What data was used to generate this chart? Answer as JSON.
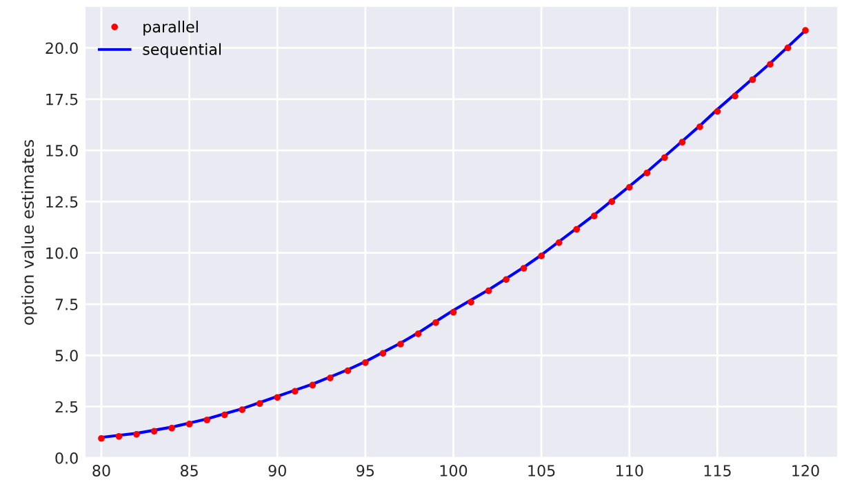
{
  "chart_data": {
    "type": "line",
    "ylabel": "option value estimates",
    "x": [
      80,
      81,
      82,
      83,
      84,
      85,
      86,
      87,
      88,
      89,
      90,
      91,
      92,
      93,
      94,
      95,
      96,
      97,
      98,
      99,
      100,
      101,
      102,
      103,
      104,
      105,
      106,
      107,
      108,
      109,
      110,
      111,
      112,
      113,
      114,
      115,
      116,
      117,
      118,
      119,
      120
    ],
    "series": [
      {
        "name": "parallel",
        "type": "scatter",
        "marker": "circle",
        "color": "#ff0000",
        "values": [
          0.95,
          1.05,
          1.15,
          1.3,
          1.45,
          1.65,
          1.85,
          2.1,
          2.35,
          2.65,
          2.95,
          3.25,
          3.55,
          3.9,
          4.25,
          4.65,
          5.1,
          5.55,
          6.05,
          6.6,
          7.1,
          7.6,
          8.15,
          8.7,
          9.25,
          9.85,
          10.5,
          11.15,
          11.8,
          12.5,
          13.2,
          13.9,
          14.65,
          15.4,
          16.15,
          16.9,
          17.65,
          18.45,
          19.2,
          20.0,
          20.85
        ]
      },
      {
        "name": "sequential",
        "color": "#0000ff",
        "values": [
          1.0,
          1.1,
          1.2,
          1.35,
          1.5,
          1.7,
          1.9,
          2.15,
          2.4,
          2.7,
          3.0,
          3.3,
          3.6,
          3.95,
          4.3,
          4.7,
          5.15,
          5.6,
          6.1,
          6.65,
          7.2,
          7.7,
          8.2,
          8.75,
          9.3,
          9.9,
          10.55,
          11.2,
          11.85,
          12.55,
          13.25,
          13.95,
          14.7,
          15.45,
          16.2,
          17.0,
          17.75,
          18.5,
          19.25,
          20.05,
          20.85
        ]
      }
    ],
    "xlim": [
      79.1,
      121.8
    ],
    "xticks": [
      80,
      85,
      90,
      95,
      100,
      105,
      110,
      115,
      120
    ],
    "ylim": [
      0,
      22.0
    ],
    "yticks": [
      {
        "value": 0,
        "label": "0.0"
      },
      {
        "value": 2.5,
        "label": "2.5"
      },
      {
        "value": 5,
        "label": "5.0"
      },
      {
        "value": 7.5,
        "label": "7.5"
      },
      {
        "value": 10,
        "label": "10.0"
      },
      {
        "value": 12.5,
        "label": "12.5"
      },
      {
        "value": 15,
        "label": "15.0"
      },
      {
        "value": 17.5,
        "label": "17.5"
      },
      {
        "value": 20,
        "label": "20.0"
      }
    ],
    "grid": true,
    "legend": "top left"
  }
}
